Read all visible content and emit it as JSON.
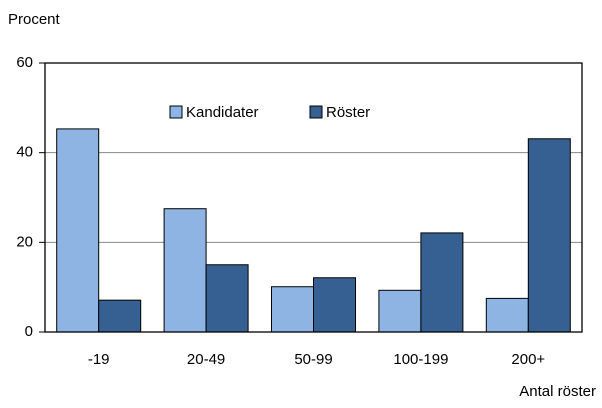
{
  "chart_data": {
    "type": "bar",
    "y_label": "Procent",
    "x_label": "Antal röster",
    "categories": [
      "-19",
      "20-49",
      "50-99",
      "100-199",
      "200+"
    ],
    "series": [
      {
        "name": "Kandidater",
        "color": "#8db4e2",
        "values": [
          45.3,
          27.5,
          10.1,
          9.3,
          7.5
        ]
      },
      {
        "name": "Röster",
        "color": "#366092",
        "values": [
          7.1,
          15.0,
          12.1,
          22.1,
          43.1
        ]
      }
    ],
    "ylim": [
      0,
      60
    ],
    "yticks": [
      0,
      20,
      40,
      60
    ],
    "grid": true,
    "legend": "top"
  }
}
